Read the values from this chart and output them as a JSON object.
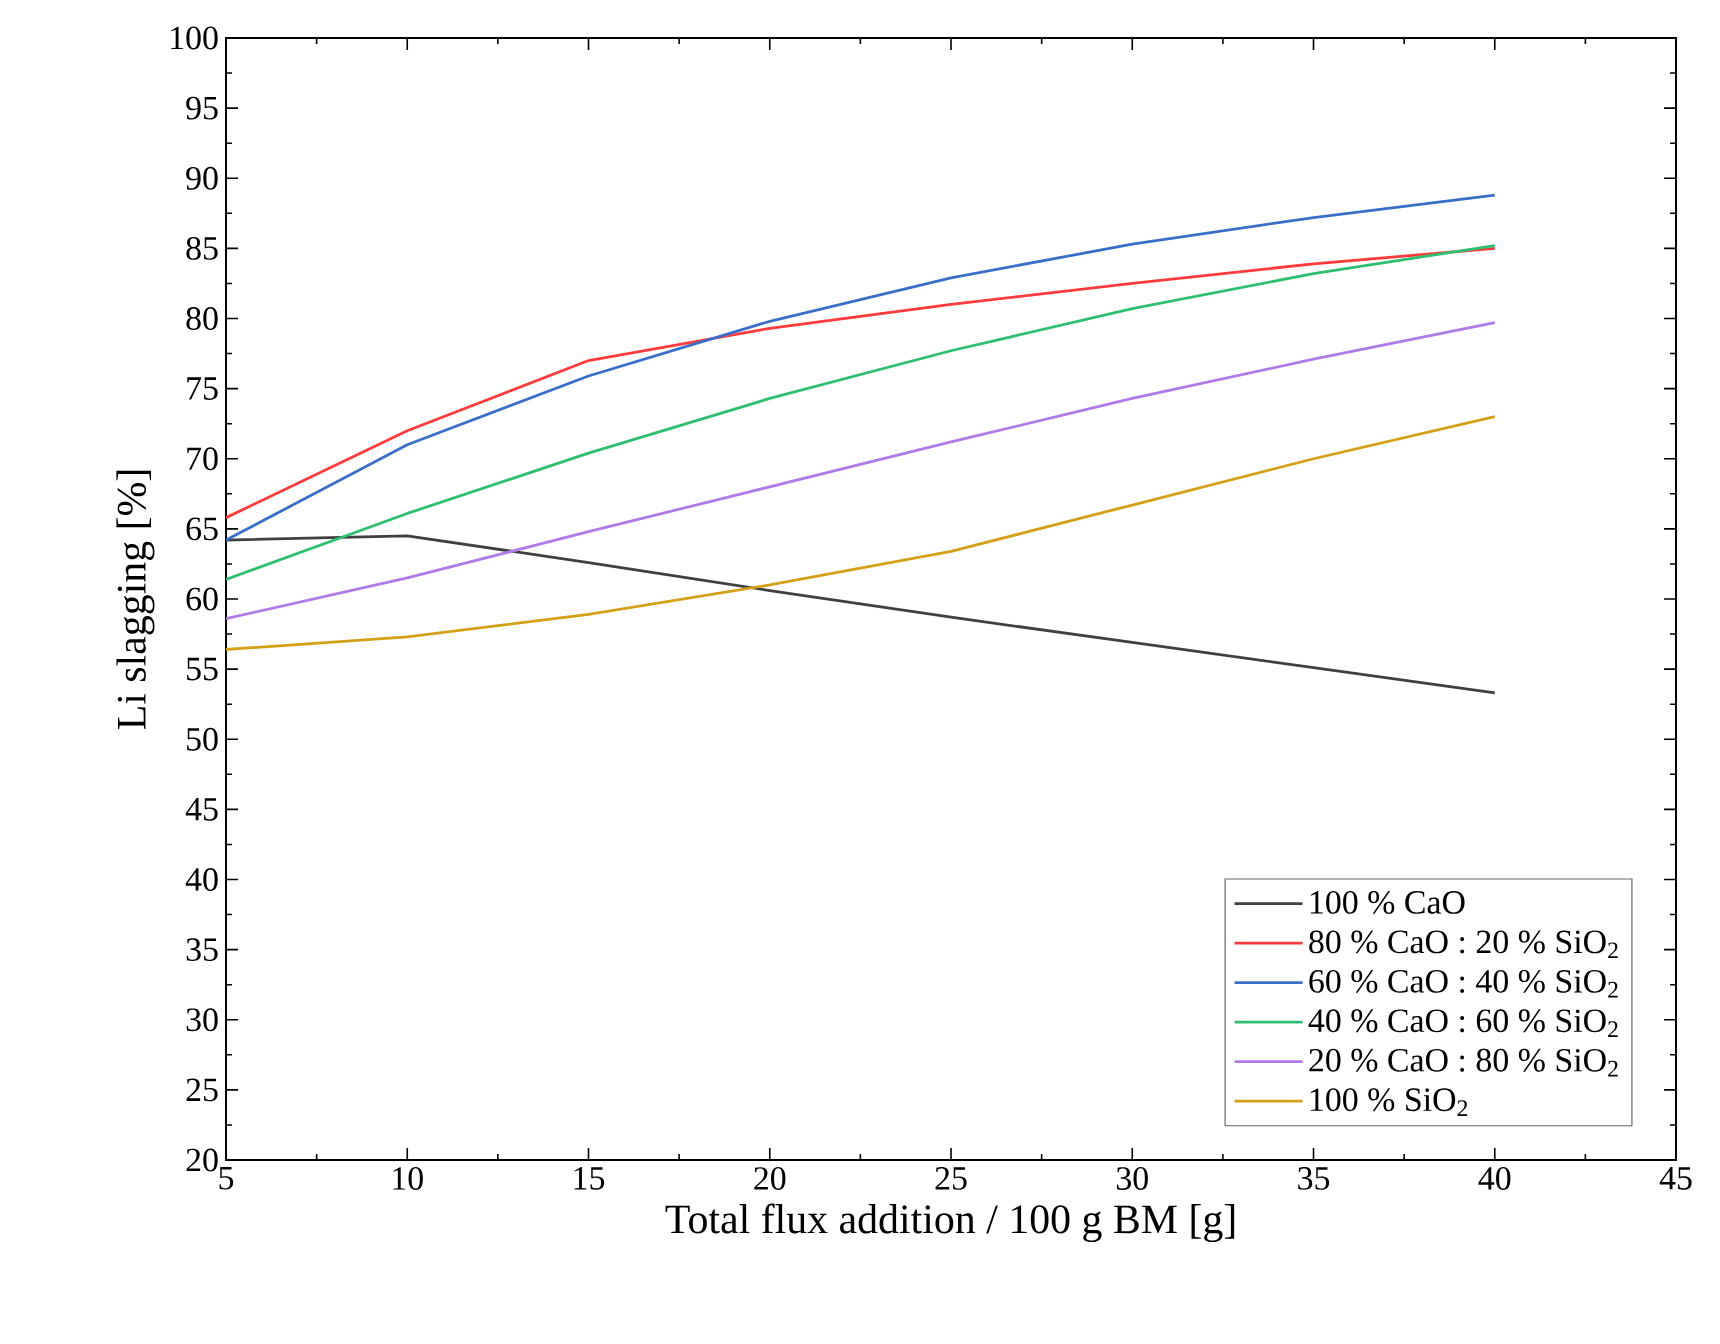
{
  "chart_data": {
    "type": "line",
    "xlabel": "Total flux addition / 100 g BM [g]",
    "ylabel": "Li slagging [%]",
    "x": [
      5,
      10,
      15,
      20,
      25,
      30,
      35,
      40
    ],
    "xlim": [
      5,
      45
    ],
    "xticks": [
      5,
      10,
      15,
      20,
      25,
      30,
      35,
      40,
      45
    ],
    "ylim": [
      20,
      100
    ],
    "yticks": [
      20,
      25,
      30,
      35,
      40,
      45,
      50,
      55,
      60,
      65,
      70,
      75,
      80,
      85,
      90,
      95,
      100
    ],
    "grid": false,
    "legend": "bottom right",
    "marker": "none",
    "line_style": "solid",
    "series": [
      {
        "name": "100 % CaO",
        "color": "#404040",
        "values": [
          64.2,
          64.5,
          62.6,
          60.6,
          58.7,
          56.9,
          55.1,
          53.3
        ]
      },
      {
        "name": "80 % CaO : 20 % SiO$_{2}$",
        "color": "#ff3b3b",
        "values": [
          65.8,
          72.0,
          77.0,
          79.3,
          81.0,
          82.5,
          83.9,
          85.0
        ]
      },
      {
        "name": "60 % CaO : 40 % SiO$_{2}$",
        "color": "#3a6fc9",
        "values": [
          64.2,
          71.0,
          75.9,
          79.8,
          82.9,
          85.3,
          87.2,
          88.8
        ]
      },
      {
        "name": "40 % CaO : 60 % SiO$_{2}$",
        "color": "#2fbf71",
        "values": [
          61.4,
          66.1,
          70.4,
          74.3,
          77.7,
          80.7,
          83.2,
          85.2
        ]
      },
      {
        "name": "20 % CaO : 80 % SiO$_{2}$",
        "color": "#b07ae8",
        "values": [
          58.6,
          61.5,
          64.8,
          68.0,
          71.2,
          74.3,
          77.1,
          79.7
        ]
      },
      {
        "name": "100 % SiO$_{2}$",
        "color": "#d4a017",
        "values": [
          56.4,
          57.3,
          58.9,
          61.0,
          63.4,
          66.7,
          70.0,
          73.0
        ]
      }
    ]
  }
}
